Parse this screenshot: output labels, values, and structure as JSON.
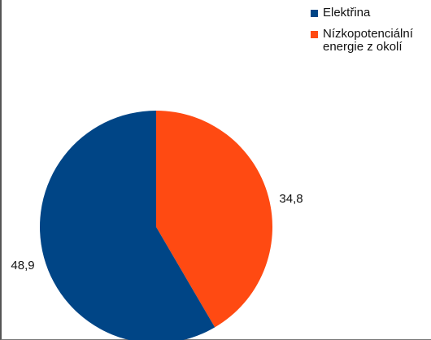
{
  "chart_data": {
    "type": "pie",
    "title": "",
    "series": [
      {
        "name": "",
        "slices": [
          {
            "label": "Nízkopotenciální energie z okolí",
            "value": 34.8,
            "value_label": "34,8",
            "color": "#ff4a12"
          },
          {
            "label": "Elektřina",
            "value": 48.9,
            "value_label": "48,9",
            "color": "#004586"
          }
        ]
      }
    ],
    "legend": {
      "placement": "top-right",
      "entries": [
        {
          "label": "Elektřina",
          "color": "#004586"
        },
        {
          "label": "Nízkopotenciální energie z okolí",
          "color": "#ff4a12"
        }
      ]
    }
  }
}
